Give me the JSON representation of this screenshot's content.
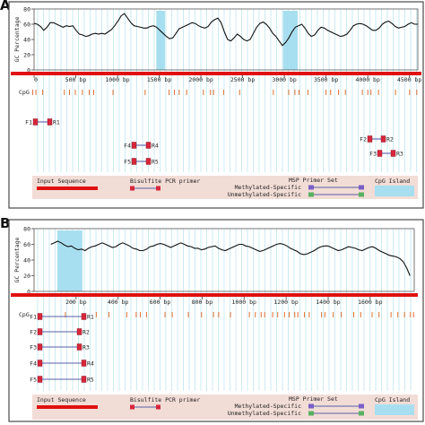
{
  "panels": [
    {
      "letter": "A",
      "ylabel": "GC Percentage",
      "y_ticks": [
        "80",
        "60",
        "40",
        "20",
        "0"
      ],
      "x_ticks": [
        "0",
        "500 bp",
        "1000 bp",
        "1500 bp",
        "2000 bp",
        "2500 bp",
        "3000 bp",
        "3500 bp",
        "4000 bp",
        "4500 bp"
      ],
      "x_tick_values": [
        0,
        500,
        1000,
        1500,
        2000,
        2500,
        3000,
        3500,
        4000,
        4500
      ],
      "x_max": 4600,
      "gc_profile": [
        61,
        60,
        57,
        52,
        56,
        62,
        62,
        60,
        58,
        56,
        58,
        57,
        58,
        52,
        47,
        46,
        44,
        45,
        47,
        48,
        47,
        48,
        47,
        50,
        53,
        58,
        64,
        71,
        74,
        68,
        62,
        58,
        57,
        56,
        55,
        55,
        57,
        58,
        56,
        52,
        48,
        44,
        41,
        42,
        48,
        54,
        56,
        58,
        60,
        62,
        61,
        58,
        56,
        55,
        57,
        63,
        66,
        68,
        62,
        50,
        40,
        38,
        42,
        47,
        44,
        40,
        38,
        40,
        48,
        56,
        61,
        63,
        60,
        55,
        48,
        44,
        38,
        32,
        36,
        42,
        50,
        56,
        58,
        60,
        55,
        48,
        44,
        46,
        52,
        56,
        55,
        52,
        50,
        48,
        46,
        44,
        45,
        47,
        52,
        58,
        60,
        61,
        60,
        58,
        55,
        52,
        52,
        55,
        60,
        63,
        64,
        61,
        57,
        55,
        56,
        57,
        60,
        62,
        60,
        60
      ],
      "cpg_island_ranges": [
        [
          1465,
          1570
        ],
        [
          2985,
          3160
        ]
      ],
      "cpg_label": "CpG",
      "primers": [
        {
          "f": "F1",
          "r": "R1",
          "start": 25,
          "end": 160,
          "row": 0
        },
        {
          "f": "F2",
          "r": "R2",
          "start": 4140,
          "end": 4300,
          "row": 1
        },
        {
          "f": "F3",
          "r": "R3",
          "start": 4240,
          "end": 4380,
          "row": 2
        },
        {
          "f": "F4",
          "r": "R4",
          "start": 1300,
          "end": 1450,
          "row": 3
        },
        {
          "f": "F5",
          "r": "R5",
          "start": 1300,
          "end": 1450,
          "row": 4
        }
      ],
      "legend": {
        "input_sequence": "Input Sequence",
        "bisulfite_primer": "Bisulfite PCR primer",
        "msp_primer_set": "MSP Primer Set",
        "methylated": "Methylated-Specific",
        "unmethylated": "Unmethylated-Specific",
        "cpg_island": "CpG Island"
      }
    },
    {
      "letter": "B",
      "ylabel": "GC Percentage",
      "y_ticks": [
        "80",
        "60",
        "40",
        "20",
        "0"
      ],
      "x_ticks": [
        "200 bp",
        "400 bp",
        "600 bp",
        "800 bp",
        "1000 bp",
        "1200 bp",
        "1400 bp",
        "1600 bp"
      ],
      "x_tick_values": [
        200,
        400,
        600,
        800,
        1000,
        1200,
        1400,
        1600
      ],
      "x_max": 1810,
      "gc_profile": [
        60,
        62,
        64,
        62,
        59,
        57,
        58,
        55,
        53,
        54,
        52,
        55,
        57,
        58,
        60,
        62,
        60,
        58,
        56,
        57,
        60,
        62,
        60,
        58,
        55,
        54,
        52,
        52,
        54,
        57,
        58,
        60,
        61,
        60,
        58,
        56,
        58,
        60,
        62,
        60,
        58,
        57,
        55,
        55,
        53,
        54,
        56,
        57,
        58,
        55,
        53,
        52,
        54,
        56,
        58,
        60,
        60,
        58,
        57,
        55,
        53,
        51,
        52,
        54,
        56,
        58,
        60,
        61,
        60,
        58,
        55,
        53,
        51,
        48,
        47,
        48,
        50,
        52,
        55,
        57,
        58,
        58,
        56,
        54,
        52,
        53,
        55,
        57,
        56,
        55,
        53,
        52,
        54,
        56,
        57,
        55,
        52,
        50,
        48,
        46,
        45,
        44,
        42,
        38,
        30,
        20
      ],
      "profile_start": 80,
      "profile_end": 1790,
      "cpg_island_ranges": [
        [
          110,
          230
        ]
      ],
      "cpg_label": "CpG",
      "primers": [
        {
          "f": "F1",
          "r": "R1",
          "start": 70,
          "end": 270,
          "row": 0
        },
        {
          "f": "F2",
          "r": "R2",
          "start": 70,
          "end": 255,
          "row": 1
        },
        {
          "f": "F3",
          "r": "R3",
          "start": 70,
          "end": 255,
          "row": 2
        },
        {
          "f": "F4",
          "r": "R4",
          "start": 70,
          "end": 270,
          "row": 3
        },
        {
          "f": "F5",
          "r": "R5",
          "start": 70,
          "end": 270,
          "row": 4
        }
      ],
      "legend": {
        "input_sequence": "Input Sequence",
        "bisulfite_primer": "Bisulfite PCR primer",
        "msp_primer_set": "MSP Primer Set",
        "methylated": "Methylated-Specific",
        "unmethylated": "Unmethylated-Specific",
        "cpg_island": "CpG Island"
      }
    }
  ],
  "colors": {
    "frame": "#4a4a4a",
    "grid": "#bfe6ee",
    "gc_line": "#111111",
    "input_sequence": "#e01010",
    "cpg_tick": "#e07030",
    "cpg_island": "#a8dff0",
    "primer_box": "#d8263a",
    "primer_line": "#5a5fa8",
    "legend_bg": "#f2dcd6",
    "methylated_box": "#7a5fc8",
    "unmethylated_box": "#58b060"
  }
}
